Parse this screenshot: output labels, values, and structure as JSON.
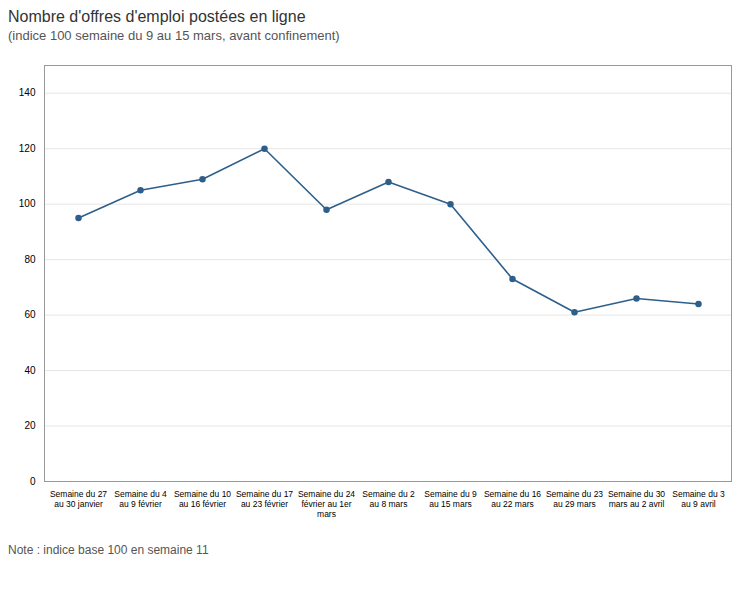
{
  "chart_data": {
    "type": "line",
    "title": "Nombre d'offres d'emploi postées en ligne",
    "subtitle": "(indice 100 semaine du 9 au 15 mars, avant confinement)",
    "note": "Note : indice base 100 en semaine 11",
    "categories": [
      "Semaine du 27\nau 30 janvier",
      "Semaine du 4\nau 9 février",
      "Semaine du 10\nau 16 février",
      "Semaine du 17\nau 23 février",
      "Semaine du 24\nfévrier au 1er\nmars",
      "Semaine du 2\nau 8 mars",
      "Semaine du 9\nau 15 mars",
      "Semaine du 16\nau 22 mars",
      "Semaine du 23\nau 29 mars",
      "Semaine du 30\nmars au 2 avril",
      "Semaine du 3\nau 9 avril"
    ],
    "values": [
      95,
      105,
      109,
      120,
      98,
      108,
      100,
      73,
      61,
      66,
      64
    ],
    "color": "#2E5F8A",
    "marker": "circle",
    "ylim": [
      0,
      150
    ],
    "yticks": [
      0,
      20,
      40,
      60,
      80,
      100,
      120,
      140
    ],
    "grid": true
  }
}
